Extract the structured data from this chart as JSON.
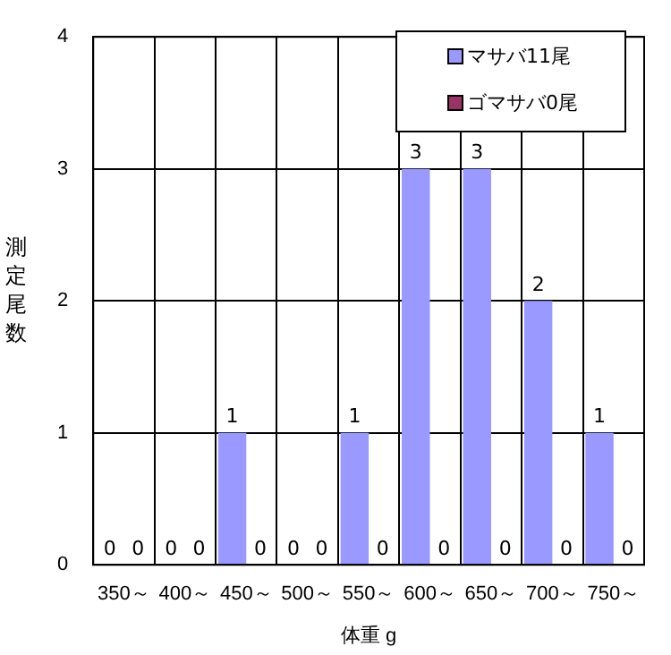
{
  "chart_data": {
    "type": "bar",
    "xlabel": "体重 g",
    "ylabel": "測定尾数",
    "categories": [
      "350～",
      "400～",
      "450～",
      "500～",
      "550～",
      "600～",
      "650～",
      "700～",
      "750～"
    ],
    "series": [
      {
        "name": "マサバ11尾",
        "color": "#9999ff",
        "values": [
          0,
          0,
          1,
          0,
          1,
          3,
          3,
          2,
          1
        ]
      },
      {
        "name": "ゴマサバ0尾",
        "color": "#993366",
        "values": [
          0,
          0,
          0,
          0,
          0,
          0,
          0,
          0,
          0
        ]
      }
    ],
    "ylim": [
      0,
      4
    ],
    "yticks": [
      0,
      1,
      2,
      3,
      4
    ],
    "grid": true,
    "legend": "top right",
    "data_labels": true
  }
}
